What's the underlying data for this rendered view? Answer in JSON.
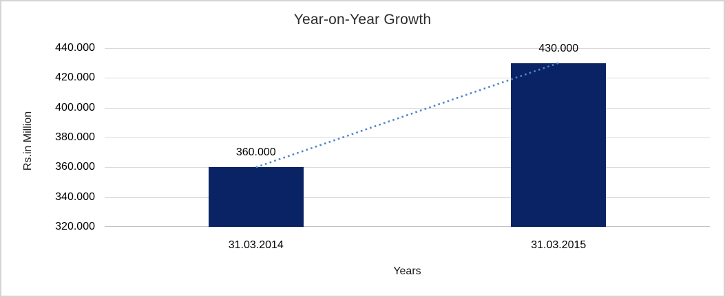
{
  "window": {
    "background_color": "#ffffff",
    "frame_border_color": "#d4d4d4"
  },
  "chart_data": {
    "type": "bar",
    "title": "Year-on-Year Growth",
    "xlabel": "Years",
    "ylabel": "Rs.in Million",
    "categories": [
      "31.03.2014",
      "31.03.2015"
    ],
    "values": [
      360,
      430
    ],
    "value_labels": [
      "360.000",
      "430.000"
    ],
    "ylim": [
      320,
      440
    ],
    "yticks": [
      320,
      340,
      360,
      380,
      400,
      420,
      440
    ],
    "ytick_labels": [
      "320.000",
      "340.000",
      "360.000",
      "380.000",
      "400.000",
      "420.000",
      "440.000"
    ],
    "grid": true,
    "legend": false,
    "bar_color": "#0a2365",
    "gridline_color": "#d9d9d9",
    "axis_line_color": "#c3c3c3",
    "trendline": {
      "style": "dotted",
      "color": "#4e86c8",
      "from_value": 360,
      "to_value": 430
    }
  }
}
